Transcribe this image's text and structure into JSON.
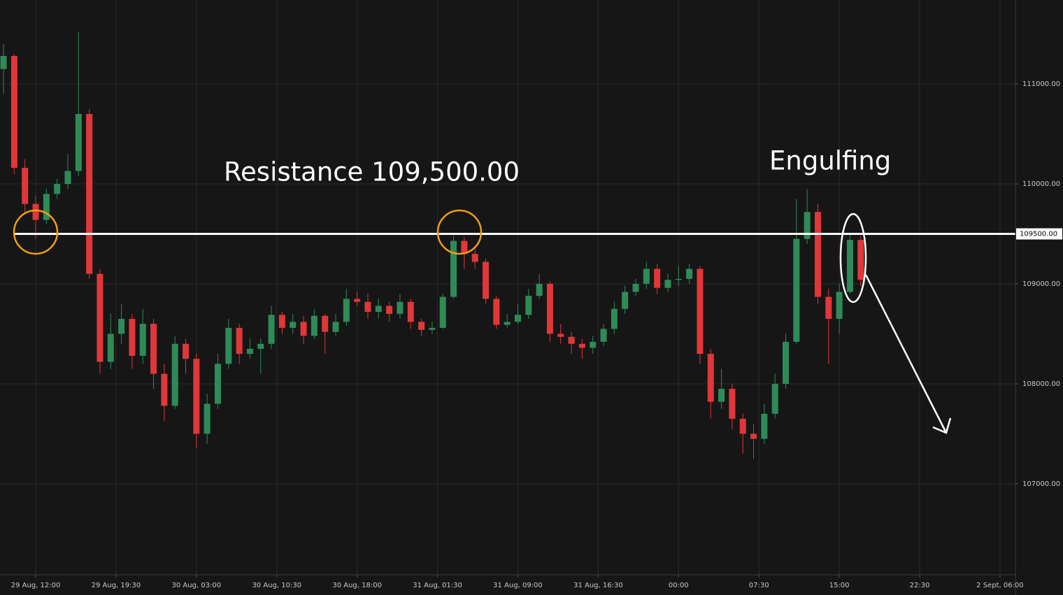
{
  "chart_data": {
    "type": "candlestick",
    "x": [
      9,
      10,
      11,
      12,
      13,
      14,
      15,
      16,
      17,
      18,
      19,
      20,
      21,
      22,
      23,
      24,
      25,
      26,
      27,
      28,
      29,
      30,
      31,
      32,
      33,
      34,
      35,
      36,
      37,
      38,
      39,
      40,
      41,
      42,
      43,
      44,
      45,
      46,
      47,
      48,
      49,
      50,
      51,
      52,
      53,
      54,
      55,
      56,
      57,
      58,
      59,
      60,
      61,
      62,
      63,
      64,
      65,
      66,
      67,
      68,
      69,
      70,
      71,
      72,
      73,
      74,
      75,
      76,
      77,
      78,
      79,
      80,
      81,
      82,
      83,
      84,
      85,
      86,
      87,
      88,
      89
    ],
    "candles": [
      [
        111150,
        111400,
        110900,
        111280
      ],
      [
        111280,
        111300,
        110100,
        110160
      ],
      [
        110160,
        110250,
        109700,
        109800
      ],
      [
        109800,
        109880,
        109450,
        109640
      ],
      [
        109640,
        109950,
        109600,
        109900
      ],
      [
        109900,
        110050,
        109850,
        110000
      ],
      [
        110000,
        110300,
        109950,
        110130
      ],
      [
        110130,
        111520,
        110080,
        110700
      ],
      [
        110700,
        110750,
        109050,
        109100
      ],
      [
        109100,
        109150,
        108100,
        108220
      ],
      [
        108220,
        108700,
        108150,
        108500
      ],
      [
        108500,
        108800,
        108400,
        108650
      ],
      [
        108650,
        108700,
        108150,
        108280
      ],
      [
        108280,
        108750,
        108200,
        108600
      ],
      [
        108600,
        108650,
        107950,
        108100
      ],
      [
        108100,
        108200,
        107630,
        107780
      ],
      [
        107780,
        108480,
        107750,
        108400
      ],
      [
        108400,
        108450,
        108100,
        108250
      ],
      [
        108250,
        108300,
        107360,
        107500
      ],
      [
        107500,
        107900,
        107400,
        107800
      ],
      [
        107800,
        108300,
        107750,
        108200
      ],
      [
        108200,
        108650,
        108150,
        108560
      ],
      [
        108560,
        108600,
        108200,
        108300
      ],
      [
        108300,
        108450,
        108250,
        108350
      ],
      [
        108350,
        108450,
        108100,
        108400
      ],
      [
        108400,
        108780,
        108350,
        108690
      ],
      [
        108690,
        108720,
        108500,
        108560
      ],
      [
        108560,
        108700,
        108500,
        108620
      ],
      [
        108620,
        108680,
        108400,
        108480
      ],
      [
        108480,
        108750,
        108450,
        108680
      ],
      [
        108680,
        108700,
        108300,
        108520
      ],
      [
        108520,
        108700,
        108480,
        108620
      ],
      [
        108620,
        108950,
        108580,
        108850
      ],
      [
        108850,
        108920,
        108780,
        108820
      ],
      [
        108820,
        108900,
        108650,
        108720
      ],
      [
        108720,
        108850,
        108650,
        108780
      ],
      [
        108780,
        108820,
        108620,
        108700
      ],
      [
        108700,
        108900,
        108650,
        108820
      ],
      [
        108820,
        108850,
        108550,
        108620
      ],
      [
        108620,
        108650,
        108480,
        108540
      ],
      [
        108540,
        108620,
        108500,
        108560
      ],
      [
        108560,
        108900,
        108550,
        108870
      ],
      [
        108870,
        109480,
        108850,
        109430
      ],
      [
        109430,
        109470,
        109150,
        109300
      ],
      [
        109300,
        109350,
        109150,
        109220
      ],
      [
        109220,
        109250,
        108800,
        108850
      ],
      [
        108850,
        108880,
        108550,
        108590
      ],
      [
        108590,
        108700,
        108560,
        108620
      ],
      [
        108620,
        108800,
        108600,
        108690
      ],
      [
        108690,
        108950,
        108650,
        108880
      ],
      [
        108880,
        109100,
        108850,
        109000
      ],
      [
        109000,
        109020,
        108420,
        108500
      ],
      [
        108500,
        108600,
        108400,
        108470
      ],
      [
        108470,
        108520,
        108300,
        108400
      ],
      [
        108400,
        108450,
        108250,
        108360
      ],
      [
        108360,
        108480,
        108300,
        108420
      ],
      [
        108420,
        108600,
        108380,
        108550
      ],
      [
        108550,
        108820,
        108500,
        108750
      ],
      [
        108750,
        108980,
        108700,
        108920
      ],
      [
        108920,
        109050,
        108880,
        109000
      ],
      [
        109000,
        109220,
        108950,
        109150
      ],
      [
        109150,
        109200,
        108900,
        108960
      ],
      [
        108960,
        109100,
        108920,
        109040
      ],
      [
        109040,
        109180,
        108980,
        109050
      ],
      [
        109050,
        109200,
        109000,
        109150
      ],
      [
        109150,
        109180,
        108200,
        108300
      ],
      [
        108300,
        108350,
        107650,
        107820
      ],
      [
        107820,
        108150,
        107750,
        107950
      ],
      [
        107950,
        108000,
        107550,
        107650
      ],
      [
        107650,
        107700,
        107300,
        107500
      ],
      [
        107500,
        107600,
        107250,
        107450
      ],
      [
        107450,
        107800,
        107400,
        107700
      ],
      [
        107700,
        108100,
        107650,
        108000
      ],
      [
        108000,
        108500,
        107950,
        108420
      ],
      [
        108420,
        109850,
        108400,
        109450
      ],
      [
        109450,
        109950,
        109400,
        109720
      ],
      [
        109720,
        109800,
        108800,
        108870
      ],
      [
        108870,
        108950,
        108200,
        108650
      ],
      [
        108650,
        109000,
        108500,
        108920
      ],
      [
        108920,
        109500,
        108900,
        109440
      ],
      [
        109440,
        109480,
        108980,
        109040
      ]
    ],
    "up_color": "#2e8b57",
    "down_color": "#e0373a",
    "xlim": [
      8.67,
      103.44
    ],
    "xticks": [
      {
        "value": 12,
        "label": "29 Aug, 12:00"
      },
      {
        "value": 19.5,
        "label": "29 Aug, 19:30"
      },
      {
        "value": 27,
        "label": "30 Aug, 03:00"
      },
      {
        "value": 34.5,
        "label": "30 Aug, 10:30"
      },
      {
        "value": 42,
        "label": "30 Aug, 18:00"
      },
      {
        "value": 49.5,
        "label": "31 Aug, 01:30"
      },
      {
        "value": 57,
        "label": "31 Aug, 09:00"
      },
      {
        "value": 64.5,
        "label": "31 Aug, 16:30"
      },
      {
        "value": 72,
        "label": "00:00"
      },
      {
        "value": 79.5,
        "label": "07:30"
      },
      {
        "value": 87,
        "label": "15:00"
      },
      {
        "value": 94.5,
        "label": "22:30"
      },
      {
        "value": 102,
        "label": "2 Sept, 06:00"
      }
    ],
    "ylim": [
      106090,
      111840
    ],
    "yticks": [
      {
        "value": 107000,
        "label": "107000.00"
      },
      {
        "value": 108000,
        "label": "108000.00"
      },
      {
        "value": 109000,
        "label": "109000.00"
      },
      {
        "value": 110000,
        "label": "110000.00"
      },
      {
        "value": 111000,
        "label": "111000.00"
      }
    ],
    "grid": true,
    "resistance": {
      "value": 109500,
      "label": "109500.00"
    },
    "annotations": [
      "Resistance 109,500.00",
      "Engulfing"
    ]
  }
}
